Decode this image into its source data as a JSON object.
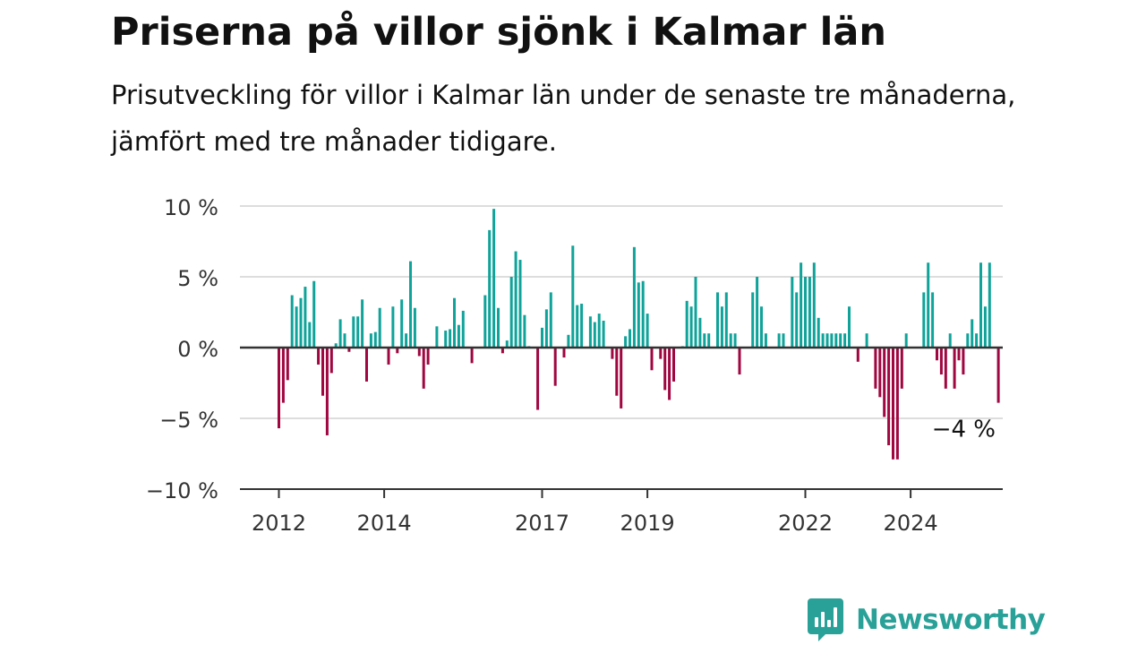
{
  "header": {
    "title": "Priserna på villor sjönk i Kalmar län",
    "subtitle": "Prisutveckling för villor i Kalmar län under de senaste tre månaderna, jämfört med tre månader tidigare."
  },
  "chart_data": {
    "type": "bar",
    "y_unit": "%",
    "ylim": [
      -10,
      10
    ],
    "y_ticks": [
      10,
      5,
      0,
      -5,
      -10
    ],
    "y_tick_labels": [
      "10 %",
      "5 %",
      "0 %",
      "−5 %",
      "−10 %"
    ],
    "x_tick_labels": [
      "2012",
      "2014",
      "2017",
      "2019",
      "2022",
      "2024"
    ],
    "x_tick_index": [
      0,
      24,
      60,
      84,
      120,
      144
    ],
    "grid": true,
    "colors": {
      "positive": "#0fa39a",
      "negative": "#a0063f",
      "axis": "#333333",
      "grid": "#dddddd",
      "text": "#333333"
    },
    "values": [
      -5.7,
      -3.9,
      -2.3,
      3.7,
      2.9,
      3.5,
      4.3,
      1.8,
      4.7,
      -1.2,
      -3.4,
      -6.2,
      -1.8,
      0.3,
      2.0,
      1.0,
      -0.3,
      2.2,
      2.2,
      3.4,
      -2.4,
      1.0,
      1.1,
      2.8,
      0,
      -1.2,
      2.9,
      -0.4,
      3.4,
      1.0,
      6.1,
      2.8,
      -0.6,
      -2.9,
      -1.2,
      0,
      1.5,
      0,
      1.2,
      1.3,
      3.5,
      1.6,
      2.6,
      0,
      -1.1,
      0,
      0,
      3.7,
      8.3,
      9.8,
      2.8,
      -0.4,
      0.5,
      5.0,
      6.8,
      6.2,
      2.3,
      0.1,
      0,
      -4.4,
      1.4,
      2.7,
      3.9,
      -2.7,
      0,
      -0.7,
      0.9,
      7.2,
      3.0,
      3.1,
      0,
      2.2,
      1.8,
      2.4,
      1.9,
      0,
      -0.8,
      -3.4,
      -4.3,
      0.8,
      1.3,
      7.1,
      4.6,
      4.7,
      2.4,
      -1.6,
      0,
      -0.8,
      -3.0,
      -3.7,
      -2.4,
      0,
      0.1,
      3.3,
      2.9,
      5.0,
      2.1,
      1.0,
      1.0,
      0,
      3.9,
      2.9,
      3.9,
      1.0,
      1.0,
      -1.9,
      0,
      0,
      3.9,
      5.0,
      2.9,
      1.0,
      0,
      0,
      1.0,
      1.0,
      0,
      5.0,
      3.9,
      6.0,
      5.0,
      5.0,
      6.0,
      2.1,
      1.0,
      1.0,
      1.0,
      1.0,
      1.0,
      1.0,
      2.9,
      0,
      -1.0,
      0,
      1.0,
      0,
      -2.9,
      -3.5,
      -4.9,
      -6.9,
      -7.9,
      -7.9,
      -2.9,
      1.0,
      0,
      0,
      0,
      3.9,
      6.0,
      3.9,
      -0.9,
      -1.9,
      -2.9,
      1.0,
      -2.9,
      -0.9,
      -1.9,
      1.0,
      2.0,
      1.0,
      6.0,
      2.9,
      6.0,
      0,
      -3.9
    ],
    "last_value_label": "−4 %"
  },
  "brand": {
    "logo_icon": "bar-chart-speech-bubble",
    "name": "Newsworthy",
    "color": "#2aa198"
  }
}
